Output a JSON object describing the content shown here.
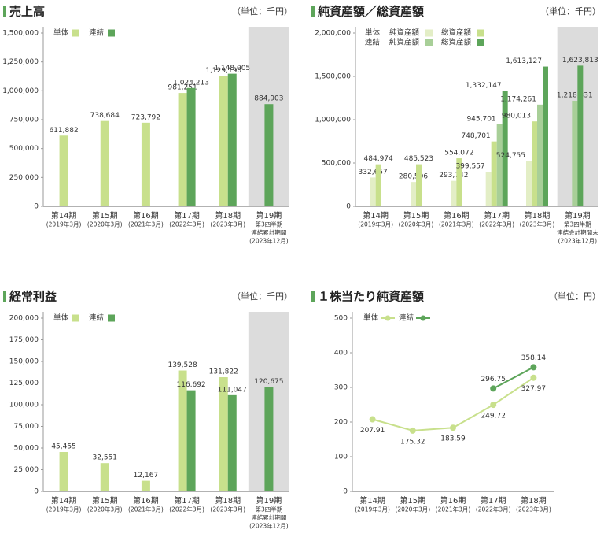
{
  "chart_data": [
    {
      "type": "bar",
      "title": "売上高",
      "unit": "（単位：千円）",
      "categories": [
        [
          "第14期",
          "(2019年3月)"
        ],
        [
          "第15期",
          "(2020年3月)"
        ],
        [
          "第16期",
          "(2021年3月)"
        ],
        [
          "第17期",
          "(2022年3月)"
        ],
        [
          "第18期",
          "(2023年3月)"
        ],
        [
          "第19期",
          "第3四半期",
          "連結累計期間",
          "(2023年12月)"
        ]
      ],
      "series": [
        {
          "name": "単体",
          "color": "#c8e08c",
          "values": [
            611882,
            738684,
            723792,
            981251,
            1129190,
            null
          ],
          "value_labels": [
            "611,882",
            "738,684",
            "723,792",
            "981,251",
            "1,129,190",
            null
          ]
        },
        {
          "name": "連結",
          "color": "#5da55a",
          "values": [
            null,
            null,
            null,
            1024213,
            1148005,
            884903
          ],
          "value_labels": [
            null,
            null,
            null,
            "1,024,213",
            "1,148,005",
            "884,903"
          ]
        }
      ],
      "ylim": [
        0,
        1500000
      ],
      "yticks": [
        0,
        {
          "value": 250000,
          "label": "250,000"
        },
        {
          "value": 500000,
          "label": "500,000"
        },
        {
          "value": 750000,
          "label": "750,000"
        },
        {
          "value": 1000000,
          "label": "1,000,000"
        },
        {
          "value": 1250000,
          "label": "1,250,000"
        },
        {
          "value": 1500000,
          "label": "1,500,000"
        }
      ],
      "shaded_categories": [
        5
      ],
      "grid": false
    },
    {
      "type": "bar",
      "title": "純資産額／総資産額",
      "unit": "（単位：千円）",
      "categories": [
        [
          "第14期",
          "(2019年3月)"
        ],
        [
          "第15期",
          "(2020年3月)"
        ],
        [
          "第16期",
          "(2021年3月)"
        ],
        [
          "第17期",
          "(2022年3月)"
        ],
        [
          "第18期",
          "(2023年3月)"
        ],
        [
          "第19期",
          "第3四半期",
          "連結会計期間末",
          "(2023年12月)"
        ]
      ],
      "series": [
        {
          "group": "単体",
          "name": "純資産額",
          "color": "#e3eec6",
          "values": [
            332657,
            280506,
            293742,
            399557,
            524755,
            null
          ],
          "value_labels": [
            "332,657",
            "280,506",
            "293,742",
            "399,557",
            "524,755",
            null
          ]
        },
        {
          "group": "単体",
          "name": "総資産額",
          "color": "#c8e08c",
          "values": [
            484974,
            485523,
            554072,
            748701,
            980013,
            null
          ],
          "value_labels": [
            "484,974",
            "485,523",
            "554,072",
            "748,701",
            "980,013",
            null
          ]
        },
        {
          "group": "連結",
          "name": "純資産額",
          "color": "#a8cf98",
          "values": [
            null,
            null,
            null,
            945701,
            1174261,
            1218331
          ],
          "value_labels": [
            null,
            null,
            null,
            "945,701",
            "1,174,261",
            "1,218,331"
          ]
        },
        {
          "group": "連結",
          "name": "総資産額",
          "color": "#5da55a",
          "values": [
            null,
            null,
            null,
            1332147,
            1613127,
            1623813
          ],
          "value_labels": [
            null,
            null,
            null,
            "1,332,147",
            "1,613,127",
            "1,623,813"
          ]
        }
      ],
      "ylim": [
        0,
        2000000
      ],
      "yticks": [
        0,
        {
          "value": 500000,
          "label": "500,000"
        },
        {
          "value": 1000000,
          "label": "1,000,000"
        },
        {
          "value": 1500000,
          "label": "1,500,000"
        },
        {
          "value": 2000000,
          "label": "2,000,000"
        }
      ],
      "shaded_categories": [
        5
      ],
      "grid": false
    },
    {
      "type": "bar",
      "title": "経常利益",
      "unit": "（単位：千円）",
      "categories": [
        [
          "第14期",
          "(2019年3月)"
        ],
        [
          "第15期",
          "(2020年3月)"
        ],
        [
          "第16期",
          "(2021年3月)"
        ],
        [
          "第17期",
          "(2022年3月)"
        ],
        [
          "第18期",
          "(2023年3月)"
        ],
        [
          "第19期",
          "第3四半期",
          "連結累計期間",
          "(2023年12月)"
        ]
      ],
      "series": [
        {
          "name": "単体",
          "color": "#c8e08c",
          "values": [
            45455,
            32551,
            12167,
            139528,
            131822,
            null
          ],
          "value_labels": [
            "45,455",
            "32,551",
            "12,167",
            "139,528",
            "131,822",
            null
          ]
        },
        {
          "name": "連結",
          "color": "#5da55a",
          "values": [
            null,
            null,
            null,
            116692,
            111047,
            120675
          ],
          "value_labels": [
            null,
            null,
            null,
            "116,692",
            "111,047",
            "120,675"
          ]
        }
      ],
      "ylim": [
        0,
        200000
      ],
      "yticks": [
        0,
        {
          "value": 25000,
          "label": "25,000"
        },
        {
          "value": 50000,
          "label": "50,000"
        },
        {
          "value": 75000,
          "label": "75,000"
        },
        {
          "value": 100000,
          "label": "100,000"
        },
        {
          "value": 125000,
          "label": "125,000"
        },
        {
          "value": 150000,
          "label": "150,000"
        },
        {
          "value": 175000,
          "label": "175,000"
        },
        {
          "value": 200000,
          "label": "200,000"
        }
      ],
      "shaded_categories": [
        5
      ],
      "grid": false
    },
    {
      "type": "line",
      "title": "１株当たり純資産額",
      "unit": "（単位：円）",
      "categories": [
        [
          "第14期",
          "(2019年3月)"
        ],
        [
          "第15期",
          "(2020年3月)"
        ],
        [
          "第16期",
          "(2021年3月)"
        ],
        [
          "第17期",
          "(2022年3月)"
        ],
        [
          "第18期",
          "(2023年3月)"
        ]
      ],
      "series": [
        {
          "name": "単体",
          "color": "#c8e08c",
          "values": [
            207.91,
            175.32,
            183.59,
            249.72,
            327.97
          ]
        },
        {
          "name": "連結",
          "color": "#5da55a",
          "values": [
            null,
            null,
            null,
            296.75,
            358.14
          ]
        }
      ],
      "ylim": [
        0,
        500
      ],
      "yticks": [
        0,
        100,
        200,
        300,
        400,
        500
      ],
      "grid": false
    }
  ]
}
